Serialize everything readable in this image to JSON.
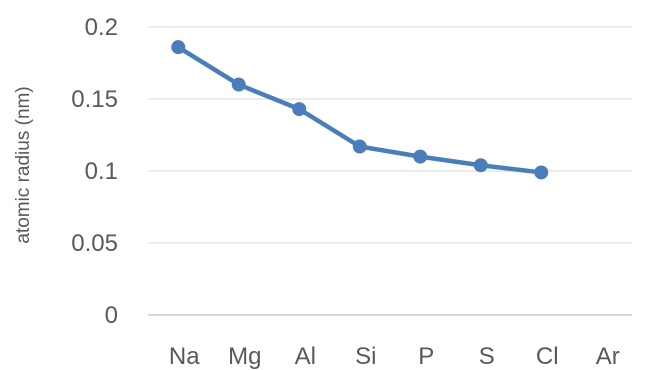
{
  "chart_data": {
    "type": "line",
    "title": "",
    "xlabel": "",
    "ylabel": "atomic radius (nm)",
    "categories": [
      "Na",
      "Mg",
      "Al",
      "Si",
      "P",
      "S",
      "Cl",
      "Ar"
    ],
    "series": [
      {
        "values": [
          0.186,
          0.16,
          0.143,
          0.117,
          0.11,
          0.104,
          0.099,
          null
        ],
        "color": "#4a7ebb"
      }
    ],
    "ylim": [
      0,
      0.2
    ],
    "yticks": [
      {
        "value": 0,
        "label": "0"
      },
      {
        "value": 0.05,
        "label": "0.05"
      },
      {
        "value": 0.1,
        "label": "0.1"
      },
      {
        "value": 0.15,
        "label": "0.15"
      },
      {
        "value": 0.2,
        "label": "0.2"
      }
    ],
    "grid": true,
    "legend": "none"
  }
}
